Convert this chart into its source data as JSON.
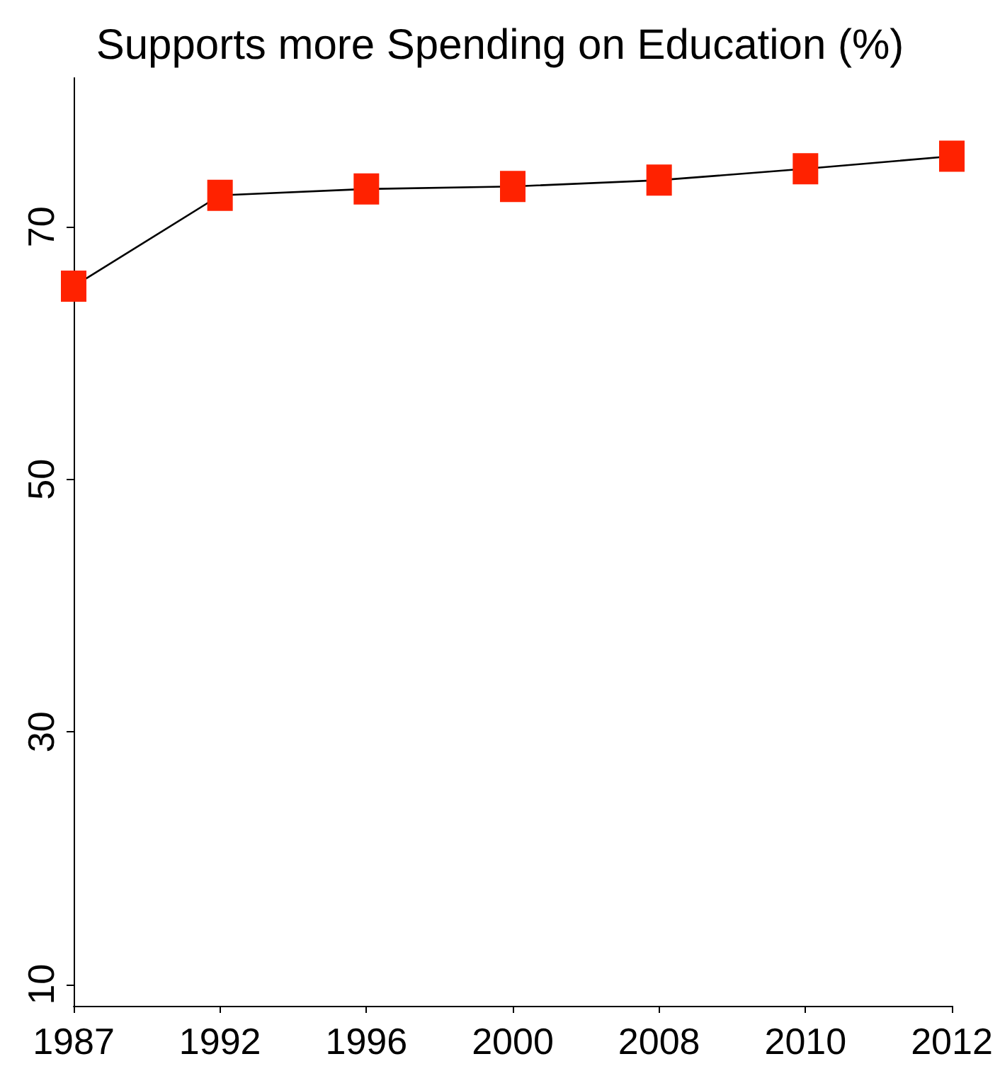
{
  "chart_data": {
    "type": "line",
    "title": "Supports more Spending on Education (%)",
    "categories": [
      "1987",
      "1992",
      "1996",
      "2000",
      "2008",
      "2010",
      "2012"
    ],
    "series": [
      {
        "color": "#ff2200",
        "values": [
          65.3,
          72.5,
          73.0,
          73.2,
          73.7,
          74.6,
          75.6
        ]
      }
    ],
    "ylim": [
      8.3,
      81.8
    ],
    "yticks": [
      10,
      30,
      50,
      70
    ],
    "grid": false,
    "marker": "square",
    "line_style": "solid"
  }
}
